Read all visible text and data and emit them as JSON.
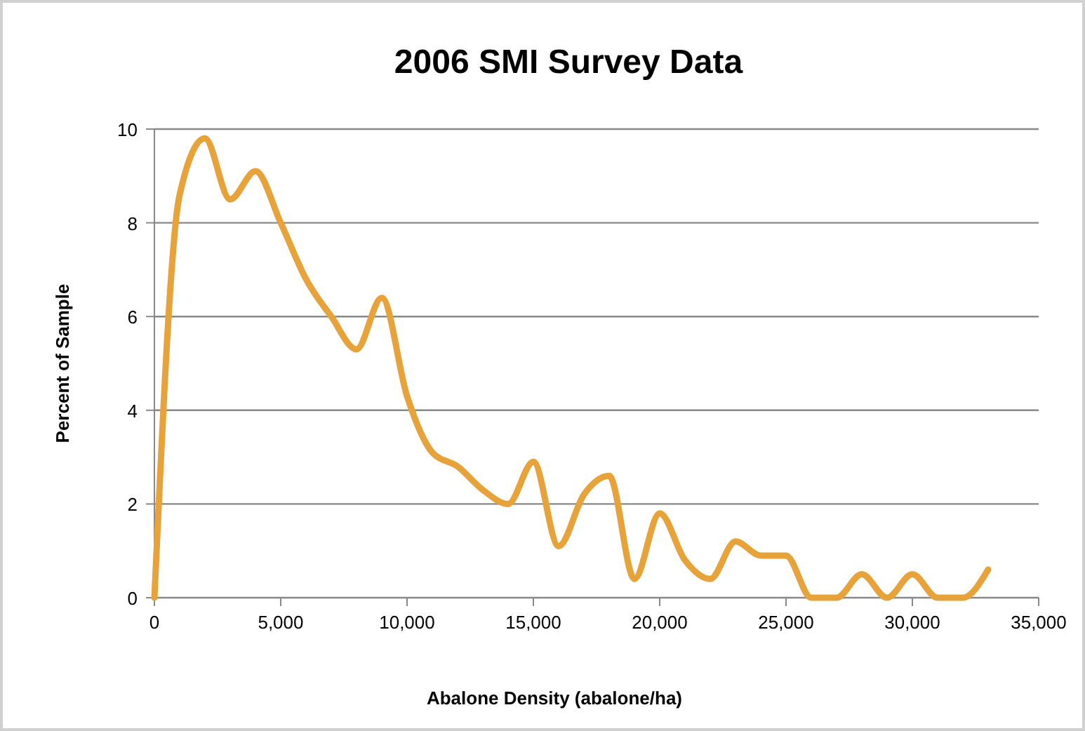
{
  "chart_data": {
    "type": "line",
    "title": "2006 SMI Survey Data",
    "xlabel": "Abalone Density (abalone/ha)",
    "ylabel": "Percent of Sample",
    "x": [
      0,
      1000,
      2000,
      3000,
      4000,
      5000,
      6000,
      7000,
      8000,
      9000,
      10000,
      11000,
      12000,
      13000,
      14000,
      15000,
      16000,
      17000,
      18000,
      19000,
      20000,
      21000,
      22000,
      23000,
      24000,
      25000,
      26000,
      27000,
      28000,
      29000,
      30000,
      31000,
      32000,
      33000
    ],
    "series": [
      {
        "color": "#e8a23a",
        "values": [
          0,
          8.6,
          9.8,
          8.5,
          9.1,
          8.0,
          6.8,
          6.0,
          5.3,
          6.4,
          4.3,
          3.1,
          2.8,
          2.3,
          2.0,
          2.9,
          1.1,
          2.2,
          2.6,
          0.4,
          1.8,
          0.8,
          0.4,
          1.2,
          0.9,
          0.9,
          0,
          0,
          0.5,
          0,
          0.5,
          0,
          0,
          0.6
        ]
      }
    ],
    "xlim": [
      0,
      35000
    ],
    "xticks": [
      0,
      {
        "value": 5000,
        "label": "5,000"
      },
      {
        "value": 10000,
        "label": "10,000"
      },
      {
        "value": 15000,
        "label": "15,000"
      },
      {
        "value": 20000,
        "label": "20,000"
      },
      {
        "value": 25000,
        "label": "25,000"
      },
      {
        "value": 30000,
        "label": "30,000"
      },
      {
        "value": 35000,
        "label": "35,000"
      }
    ],
    "ylim": [
      0,
      10
    ],
    "yticks": [
      0,
      2,
      4,
      6,
      8,
      10
    ],
    "grid": "y",
    "marker": "none",
    "line_style": "solid"
  }
}
